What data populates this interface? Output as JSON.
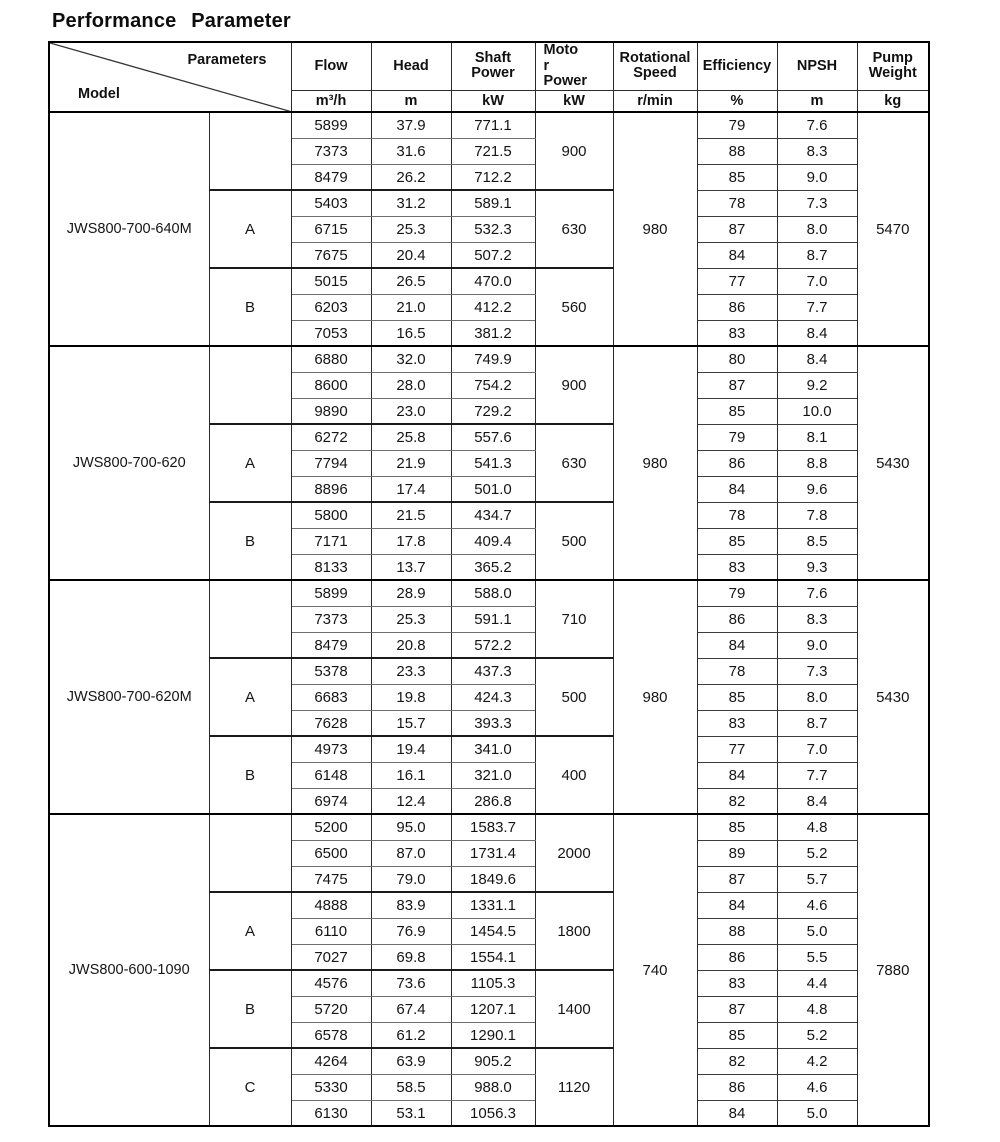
{
  "title": "Performance Parameter",
  "table": {
    "corner": {
      "top_label": "Parameters",
      "bottom_label": "Model"
    },
    "columns": [
      {
        "label": "Flow",
        "unit": "m³/h"
      },
      {
        "label": "Head",
        "unit": "m"
      },
      {
        "label": "Shaft\nPower",
        "unit": "kW"
      },
      {
        "label": "Moto\nr\nPower",
        "unit": "kW"
      },
      {
        "label": "Rotational\nSpeed",
        "unit": "r/min"
      },
      {
        "label": "Efficiency",
        "unit": "%"
      },
      {
        "label": "NPSH",
        "unit": "m"
      },
      {
        "label": "Pump\nWeight",
        "unit": "kg"
      }
    ],
    "models": [
      {
        "model": "JWS800-700-640M",
        "speed": "980",
        "weight": "5470",
        "groups": [
          {
            "param": "",
            "motor": "900",
            "rows": [
              [
                "5899",
                "37.9",
                "771.1",
                "79",
                "7.6"
              ],
              [
                "7373",
                "31.6",
                "721.5",
                "88",
                "8.3"
              ],
              [
                "8479",
                "26.2",
                "712.2",
                "85",
                "9.0"
              ]
            ]
          },
          {
            "param": "A",
            "motor": "630",
            "rows": [
              [
                "5403",
                "31.2",
                "589.1",
                "78",
                "7.3"
              ],
              [
                "6715",
                "25.3",
                "532.3",
                "87",
                "8.0"
              ],
              [
                "7675",
                "20.4",
                "507.2",
                "84",
                "8.7"
              ]
            ]
          },
          {
            "param": "B",
            "motor": "560",
            "rows": [
              [
                "5015",
                "26.5",
                "470.0",
                "77",
                "7.0"
              ],
              [
                "6203",
                "21.0",
                "412.2",
                "86",
                "7.7"
              ],
              [
                "7053",
                "16.5",
                "381.2",
                "83",
                "8.4"
              ]
            ]
          }
        ]
      },
      {
        "model": "JWS800-700-620",
        "speed": "980",
        "weight": "5430",
        "groups": [
          {
            "param": "",
            "motor": "900",
            "rows": [
              [
                "6880",
                "32.0",
                "749.9",
                "80",
                "8.4"
              ],
              [
                "8600",
                "28.0",
                "754.2",
                "87",
                "9.2"
              ],
              [
                "9890",
                "23.0",
                "729.2",
                "85",
                "10.0"
              ]
            ]
          },
          {
            "param": "A",
            "motor": "630",
            "rows": [
              [
                "6272",
                "25.8",
                "557.6",
                "79",
                "8.1"
              ],
              [
                "7794",
                "21.9",
                "541.3",
                "86",
                "8.8"
              ],
              [
                "8896",
                "17.4",
                "501.0",
                "84",
                "9.6"
              ]
            ]
          },
          {
            "param": "B",
            "motor": "500",
            "rows": [
              [
                "5800",
                "21.5",
                "434.7",
                "78",
                "7.8"
              ],
              [
                "7171",
                "17.8",
                "409.4",
                "85",
                "8.5"
              ],
              [
                "8133",
                "13.7",
                "365.2",
                "83",
                "9.3"
              ]
            ]
          }
        ]
      },
      {
        "model": "JWS800-700-620M",
        "speed": "980",
        "weight": "5430",
        "groups": [
          {
            "param": "",
            "motor": "710",
            "rows": [
              [
                "5899",
                "28.9",
                "588.0",
                "79",
                "7.6"
              ],
              [
                "7373",
                "25.3",
                "591.1",
                "86",
                "8.3"
              ],
              [
                "8479",
                "20.8",
                "572.2",
                "84",
                "9.0"
              ]
            ]
          },
          {
            "param": "A",
            "motor": "500",
            "rows": [
              [
                "5378",
                "23.3",
                "437.3",
                "78",
                "7.3"
              ],
              [
                "6683",
                "19.8",
                "424.3",
                "85",
                "8.0"
              ],
              [
                "7628",
                "15.7",
                "393.3",
                "83",
                "8.7"
              ]
            ]
          },
          {
            "param": "B",
            "motor": "400",
            "rows": [
              [
                "4973",
                "19.4",
                "341.0",
                "77",
                "7.0"
              ],
              [
                "6148",
                "16.1",
                "321.0",
                "84",
                "7.7"
              ],
              [
                "6974",
                "12.4",
                "286.8",
                "82",
                "8.4"
              ]
            ]
          }
        ]
      },
      {
        "model": "JWS800-600-1090",
        "speed": "740",
        "weight": "7880",
        "groups": [
          {
            "param": "",
            "motor": "2000",
            "rows": [
              [
                "5200",
                "95.0",
                "1583.7",
                "85",
                "4.8"
              ],
              [
                "6500",
                "87.0",
                "1731.4",
                "89",
                "5.2"
              ],
              [
                "7475",
                "79.0",
                "1849.6",
                "87",
                "5.7"
              ]
            ]
          },
          {
            "param": "A",
            "motor": "1800",
            "rows": [
              [
                "4888",
                "83.9",
                "1331.1",
                "84",
                "4.6"
              ],
              [
                "6110",
                "76.9",
                "1454.5",
                "88",
                "5.0"
              ],
              [
                "7027",
                "69.8",
                "1554.1",
                "86",
                "5.5"
              ]
            ]
          },
          {
            "param": "B",
            "motor": "1400",
            "rows": [
              [
                "4576",
                "73.6",
                "1105.3",
                "83",
                "4.4"
              ],
              [
                "5720",
                "67.4",
                "1207.1",
                "87",
                "4.8"
              ],
              [
                "6578",
                "61.2",
                "1290.1",
                "85",
                "5.2"
              ]
            ]
          },
          {
            "param": "C",
            "motor": "1120",
            "rows": [
              [
                "4264",
                "63.9",
                "905.2",
                "82",
                "4.2"
              ],
              [
                "5330",
                "58.5",
                "988.0",
                "86",
                "4.6"
              ],
              [
                "6130",
                "53.1",
                "1056.3",
                "84",
                "5.0"
              ]
            ]
          }
        ]
      }
    ]
  }
}
